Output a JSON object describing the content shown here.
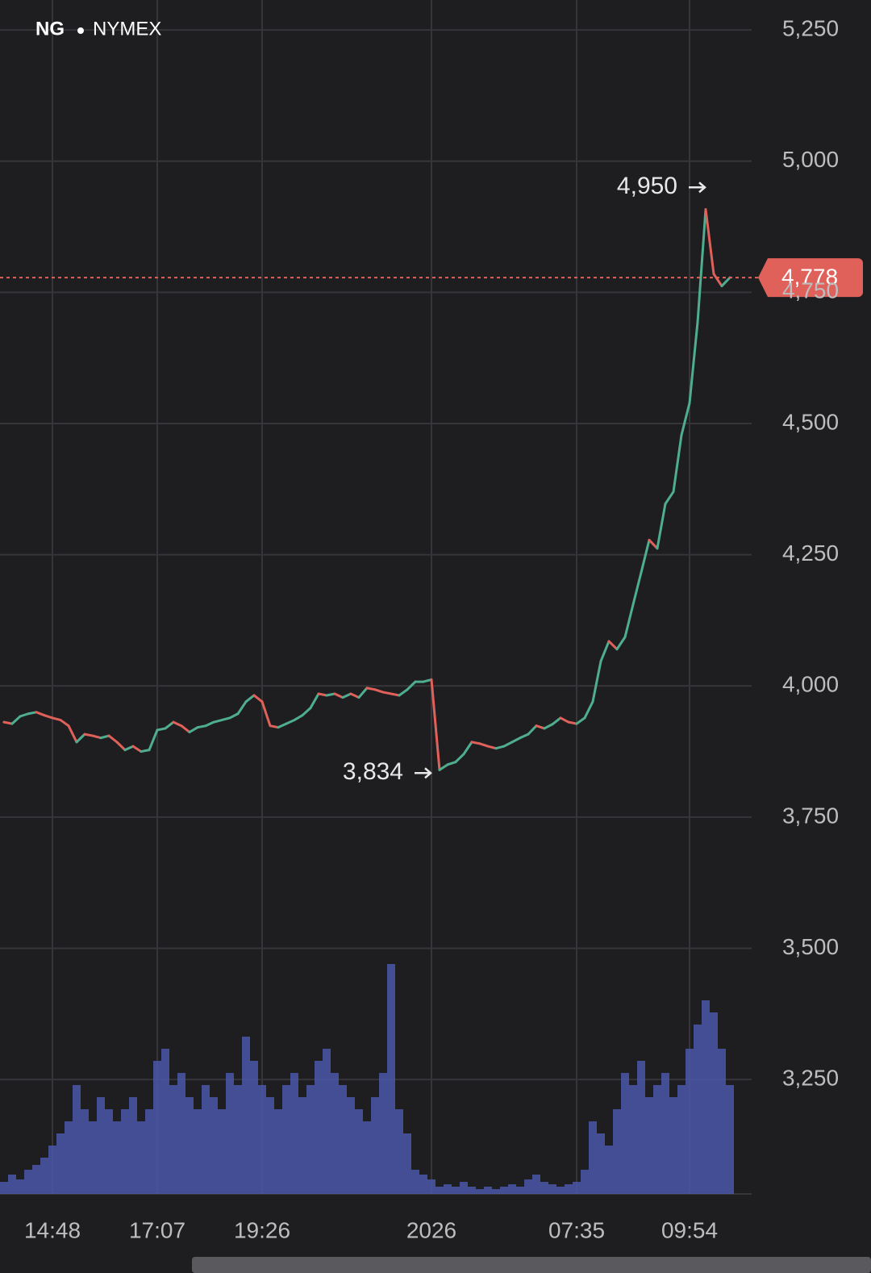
{
  "chart_data": {
    "type": "line",
    "symbol": "NG",
    "exchange": "NYMEX",
    "categories": [
      null,
      null,
      null,
      null,
      null,
      null,
      "14:48",
      null,
      null,
      null,
      null,
      null,
      null,
      null,
      null,
      null,
      null,
      null,
      null,
      "17:07",
      null,
      null,
      null,
      null,
      null,
      null,
      null,
      null,
      null,
      null,
      null,
      null,
      "19:26",
      null,
      null,
      null,
      null,
      null,
      null,
      null,
      null,
      null,
      null,
      null,
      null,
      null,
      null,
      null,
      null,
      null,
      null,
      null,
      null,
      "2026",
      null,
      null,
      null,
      null,
      null,
      null,
      null,
      null,
      null,
      null,
      null,
      null,
      null,
      null,
      null,
      null,
      null,
      "07:35",
      null,
      null,
      null,
      null,
      null,
      null,
      null,
      null,
      null,
      null,
      null,
      null,
      null,
      "09:54",
      null,
      null,
      null,
      null,
      null
    ],
    "series": [
      {
        "name": "NG",
        "up_color": "#4fae8f",
        "down_color": "#e0605a",
        "values": [
          3931,
          3928,
          3942,
          3947,
          3950,
          3944,
          3939,
          3935,
          3924,
          3893,
          3908,
          3905,
          3901,
          3905,
          3893,
          3878,
          3885,
          3875,
          3878,
          3916,
          3919,
          3931,
          3924,
          3912,
          3921,
          3924,
          3931,
          3935,
          3939,
          3947,
          3970,
          3982,
          3970,
          3924,
          3921,
          3928,
          3935,
          3944,
          3958,
          3985,
          3982,
          3985,
          3978,
          3985,
          3978,
          3996,
          3993,
          3988,
          3985,
          3982,
          3993,
          4008,
          4008,
          4012,
          3840,
          3850,
          3855,
          3870,
          3893,
          3890,
          3885,
          3881,
          3885,
          3893,
          3901,
          3908,
          3924,
          3919,
          3927,
          3939,
          3931,
          3928,
          3939,
          3970,
          4047,
          4085,
          4070,
          4093,
          4155,
          4216,
          4278,
          4262,
          4347,
          4370,
          4478,
          4539,
          4693,
          4908,
          4785,
          4762,
          4778
        ]
      },
      {
        "name": "Volume",
        "color": "#4a57a8",
        "values": [
          5,
          8,
          6,
          10,
          12,
          15,
          20,
          25,
          30,
          45,
          35,
          30,
          40,
          35,
          30,
          35,
          40,
          30,
          35,
          55,
          60,
          45,
          50,
          40,
          35,
          45,
          40,
          35,
          50,
          45,
          65,
          55,
          45,
          40,
          35,
          45,
          50,
          40,
          45,
          55,
          60,
          50,
          45,
          40,
          35,
          30,
          40,
          50,
          95,
          35,
          25,
          10,
          8,
          6,
          3,
          4,
          3,
          5,
          3,
          2,
          3,
          2,
          3,
          4,
          3,
          6,
          8,
          5,
          4,
          3,
          4,
          5,
          10,
          30,
          25,
          20,
          35,
          50,
          45,
          55,
          40,
          45,
          50,
          40,
          45,
          60,
          70,
          80,
          75,
          60,
          45
        ]
      }
    ],
    "ylim": [
      3032,
      5307
    ],
    "yticks": [
      {
        "value": 3250,
        "label": "3,250"
      },
      {
        "value": 3500,
        "label": "3,500"
      },
      {
        "value": 3750,
        "label": "3,750"
      },
      {
        "value": 4000,
        "label": "4,000"
      },
      {
        "value": 4250,
        "label": "4,250"
      },
      {
        "value": 4500,
        "label": "4,500"
      },
      {
        "value": 4750,
        "label": "4,750"
      },
      {
        "value": 5000,
        "label": "5,000"
      },
      {
        "value": 5250,
        "label": "5,250"
      }
    ],
    "volume_lim": [
      0,
      100
    ],
    "grid": true,
    "annotations": [
      {
        "value": 4950,
        "label": "4,950"
      },
      {
        "value": 3834,
        "label": "3,834"
      }
    ],
    "last_price": {
      "value": 4778,
      "label": "4,778",
      "color": "#e0605a"
    }
  }
}
